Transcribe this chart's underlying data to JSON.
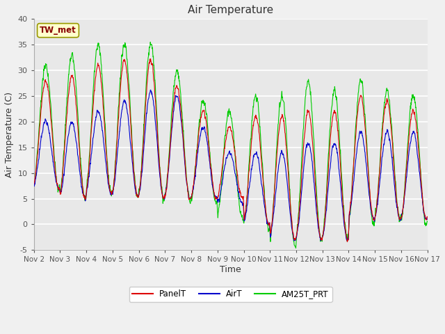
{
  "title": "Air Temperature",
  "xlabel": "Time",
  "ylabel": "Air Temperature (C)",
  "ylim": [
    -5,
    40
  ],
  "fig_bg_color": "#f0f0f0",
  "plot_bg_color": "#e8e8e8",
  "grid_color": "#ffffff",
  "annotation_text": "TW_met",
  "annotation_color": "#880000",
  "annotation_bg": "#ffffcc",
  "annotation_border": "#aaaaaa",
  "series_colors": {
    "PanelT": "#dd0000",
    "AirT": "#0000cc",
    "AM25T_PRT": "#00cc00"
  },
  "xtick_labels": [
    "Nov 2",
    "Nov 3",
    "Nov 4",
    "Nov 5",
    "Nov 6",
    "Nov 7",
    "Nov 8",
    "Nov 9",
    "Nov 10",
    "Nov 11",
    "Nov 12",
    "Nov 13",
    "Nov 14",
    "Nov 15",
    "Nov 16",
    "Nov 17"
  ],
  "ytick_values": [
    -5,
    0,
    5,
    10,
    15,
    20,
    25,
    30,
    35,
    40
  ],
  "ytick_labels": [
    "-5",
    "0",
    "5",
    "10",
    "15",
    "20",
    "25",
    "30",
    "35",
    "40"
  ]
}
